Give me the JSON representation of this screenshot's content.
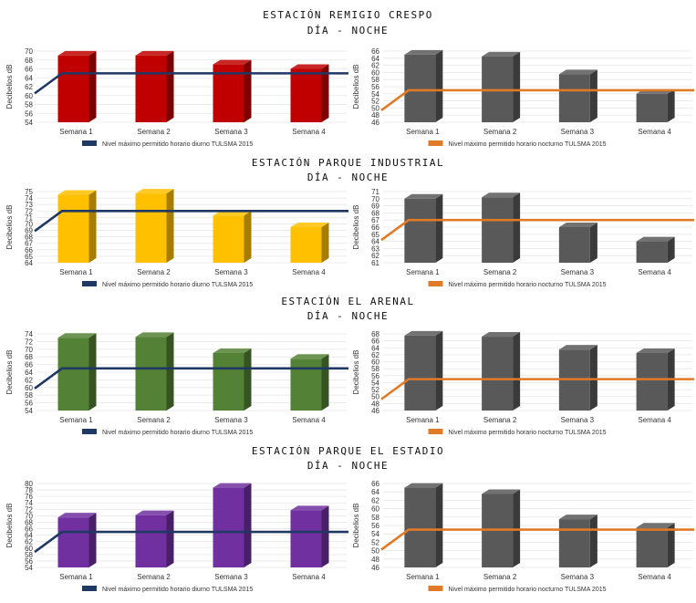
{
  "chart_data": [
    {
      "type": "bar",
      "station_title": "ESTACIÓN REMIGIO CRESPO",
      "period_title": "DÍA - NOCHE",
      "panel": "día",
      "categories": [
        "Semana 1",
        "Semana 2",
        "Semana 3",
        "Semana 4"
      ],
      "values": [
        69,
        69,
        67,
        66
      ],
      "bar_color": "#c00000",
      "ylabel": "Decibelios dB",
      "ylim": [
        54,
        70
      ],
      "ystep": 2,
      "limit": {
        "label": "Nivel máximo permitido horario diurno TULSMA 2015",
        "value": 65,
        "color": "#1f3864"
      }
    },
    {
      "type": "bar",
      "panel": "noche",
      "categories": [
        "Semana 1",
        "Semana 2",
        "Semana 3",
        "Semana 4"
      ],
      "values": [
        65,
        64.5,
        59.5,
        54
      ],
      "bar_color": "#595959",
      "ylabel": "Decibelios dB",
      "ylim": [
        46,
        66
      ],
      "ystep": 2,
      "limit": {
        "label": "Nivel máximo permitido horario nocturno TULSMA 2015",
        "value": 55,
        "color": "#e07a26"
      }
    },
    {
      "type": "bar",
      "station_title": "ESTACIÓN PARQUE INDUSTRIAL",
      "period_title": "DÍA - NOCHE",
      "panel": "día",
      "categories": [
        "Semana 1",
        "Semana 2",
        "Semana 3",
        "Semana 4"
      ],
      "values": [
        74.5,
        74.7,
        71.3,
        69.5
      ],
      "bar_color": "#ffc000",
      "ylabel": "Decibelios dB",
      "ylim": [
        64,
        75
      ],
      "ystep": 1,
      "limit": {
        "label": "Nivel máximo permitido horario diurno TULSMA 2015",
        "value": 72,
        "color": "#1f3864"
      }
    },
    {
      "type": "bar",
      "panel": "noche",
      "categories": [
        "Semana 1",
        "Semana 2",
        "Semana 3",
        "Semana 4"
      ],
      "values": [
        70,
        70.2,
        66,
        64
      ],
      "bar_color": "#595959",
      "ylabel": "Decibelios dB",
      "ylim": [
        61,
        71
      ],
      "ystep": 1,
      "limit": {
        "label": "Nivel máximo permitido horario nocturno TULSMA 2015",
        "value": 67,
        "color": "#e07a26"
      }
    },
    {
      "type": "bar",
      "station_title": "ESTACIÓN EL ARENAL",
      "period_title": "DÍA - NOCHE",
      "panel": "día",
      "categories": [
        "Semana 1",
        "Semana 2",
        "Semana 3",
        "Semana 4"
      ],
      "values": [
        73,
        73.2,
        69,
        67.5
      ],
      "bar_color": "#538135",
      "ylabel": "Decibelios dB",
      "ylim": [
        54,
        74
      ],
      "ystep": 2,
      "limit": {
        "label": "Nivel máximo permitido horario diurno TULSMA 2015",
        "value": 65,
        "color": "#1f3864"
      }
    },
    {
      "type": "bar",
      "panel": "noche",
      "categories": [
        "Semana 1",
        "Semana 2",
        "Semana 3",
        "Semana 4"
      ],
      "values": [
        67.5,
        67.2,
        63.5,
        62.5
      ],
      "bar_color": "#595959",
      "ylabel": "Decibelios dB",
      "ylim": [
        46,
        68
      ],
      "ystep": 2,
      "limit": {
        "label": "Nivel máximo permitido horario nocturno TULSMA 2015",
        "value": 55,
        "color": "#e07a26"
      }
    },
    {
      "type": "bar",
      "station_title": "ESTACIÓN PARQUE EL ESTADIO",
      "period_title": "DÍA - NOCHE",
      "panel": "día",
      "categories": [
        "Semana 1",
        "Semana 2",
        "Semana 3",
        "Semana 4"
      ],
      "values": [
        69.5,
        70.2,
        78.7,
        71.7
      ],
      "bar_color": "#7030a0",
      "ylabel": "Decibelios dB",
      "ylim": [
        54,
        80
      ],
      "ystep": 2,
      "limit": {
        "label": "Nivel máximo permitido horario diurno TULSMA 2015",
        "value": 65,
        "color": "#1f3864"
      }
    },
    {
      "type": "bar",
      "panel": "noche",
      "categories": [
        "Semana 1",
        "Semana 2",
        "Semana 3",
        "Semana 4"
      ],
      "values": [
        65,
        63.5,
        57.5,
        55.5
      ],
      "bar_color": "#595959",
      "ylabel": "Decibelios dB",
      "ylim": [
        46,
        66
      ],
      "ystep": 2,
      "limit": {
        "label": "Nivel máximo permitido horario nocturno TULSMA 2015",
        "value": 55,
        "color": "#e07a26"
      }
    }
  ]
}
